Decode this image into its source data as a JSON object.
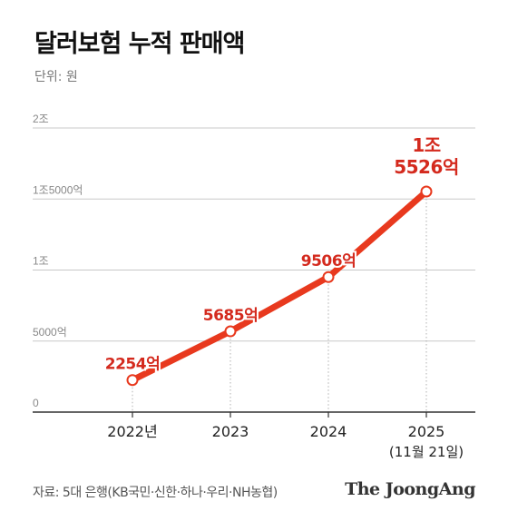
{
  "title": "달러보험 누적 판매액",
  "unit_label": "단위: 원",
  "source": "자료: 5대 은행(KB국민·신한·하나·우리·NH농협)",
  "brand": "The JoongAng",
  "colors": {
    "line": "#e8391e",
    "label": "#d42a1e",
    "grid": "#c8c8c8",
    "axis": "#333333",
    "tick": "#888888"
  },
  "chart_data": {
    "type": "line",
    "title": "달러보험 누적 판매액",
    "ylabel": "단위: 원",
    "ylim": [
      0,
      20000
    ],
    "y_unit": "억 원",
    "y_ticks": [
      {
        "value": 0,
        "label": "0"
      },
      {
        "value": 5000,
        "label": "5000억"
      },
      {
        "value": 10000,
        "label": "1조"
      },
      {
        "value": 15000,
        "label": "1조5000억"
      },
      {
        "value": 20000,
        "label": "2조"
      }
    ],
    "points": [
      {
        "x": "2022년",
        "y": 2254,
        "label": "2254억"
      },
      {
        "x": "2023",
        "y": 5685,
        "label": "5685억"
      },
      {
        "x": "2024",
        "y": 9506,
        "label": "9506억"
      },
      {
        "x": "2025",
        "x_sub": "(11월 21일)",
        "y": 15526,
        "label_lines": [
          "1조",
          "5526억"
        ]
      }
    ],
    "grid": true,
    "legend": "none"
  }
}
